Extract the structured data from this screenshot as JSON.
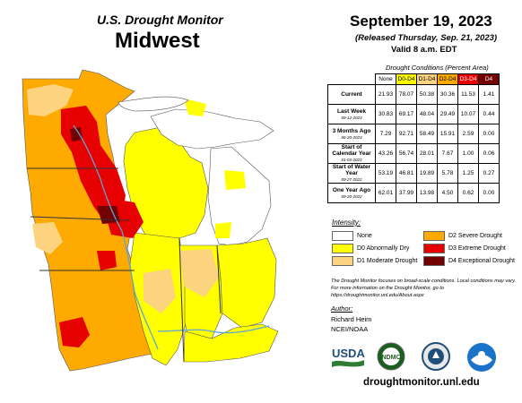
{
  "header": {
    "brand": "U.S. Drought Monitor",
    "region": "Midwest",
    "date": "September 19, 2023",
    "released": "(Released Thursday, Sep. 21, 2023)",
    "valid": "Valid 8 a.m. EDT"
  },
  "table": {
    "caption": "Drought Conditions (Percent Area)",
    "columns": [
      "None",
      "D0-D4",
      "D1-D4",
      "D2-D4",
      "D3-D4",
      "D4"
    ],
    "column_colors": [
      "#ffffff",
      "#ffff00",
      "#fcd37f",
      "#ffaa00",
      "#e60000",
      "#730000"
    ],
    "rows": [
      {
        "label": "Current",
        "sub": "",
        "values": [
          "21.93",
          "78.07",
          "50.38",
          "30.36",
          "11.53",
          "1.41"
        ]
      },
      {
        "label": "Last Week",
        "sub": "09-12-2023",
        "values": [
          "30.83",
          "69.17",
          "48.04",
          "29.49",
          "10.07",
          "0.44"
        ]
      },
      {
        "label": "3 Months Ago",
        "sub": "06-20-2023",
        "values": [
          "7.29",
          "92.71",
          "58.49",
          "15.91",
          "2.59",
          "0.00"
        ]
      },
      {
        "label": "Start of Calendar Year",
        "sub": "01-03-2023",
        "values": [
          "43.26",
          "56.74",
          "28.01",
          "7.67",
          "1.00",
          "0.06"
        ]
      },
      {
        "label": "Start of Water Year",
        "sub": "09-27-2022",
        "values": [
          "53.19",
          "46.81",
          "19.89",
          "5.78",
          "1.25",
          "0.27"
        ]
      },
      {
        "label": "One Year Ago",
        "sub": "09-20-2022",
        "values": [
          "62.01",
          "37.99",
          "13.98",
          "4.50",
          "0.62",
          "0.00"
        ]
      }
    ]
  },
  "legend": {
    "title": "Intensity:",
    "items": [
      {
        "label": "None",
        "color": "#ffffff"
      },
      {
        "label": "D0 Abnormally Dry",
        "color": "#ffff00"
      },
      {
        "label": "D1 Moderate Drought",
        "color": "#fcd37f"
      },
      {
        "label": "D2 Severe Drought",
        "color": "#ffaa00"
      },
      {
        "label": "D3 Extreme Drought",
        "color": "#e60000"
      },
      {
        "label": "D4 Exceptional Drought",
        "color": "#730000"
      }
    ]
  },
  "note": "The Drought Monitor focuses on broad-scale conditions. Local conditions may vary. For more information on the Drought Monitor, go to https://droughtmonitor.unl.edu/About.aspx",
  "author": {
    "title": "Author:",
    "name": "Richard Heim",
    "org": "NCEI/NOAA"
  },
  "logos": {
    "usda": "USDA",
    "ndmc": "NDMC"
  },
  "url": "droughtmonitor.unl.edu"
}
